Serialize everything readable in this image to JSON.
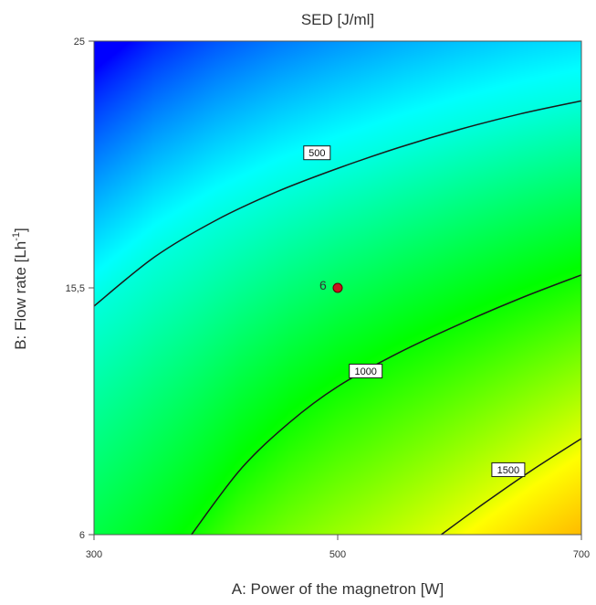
{
  "chart_data": {
    "type": "heatmap",
    "subtype": "contour",
    "title": "SED [J/ml]",
    "xlabel": "A: Power of the magnetron [W]",
    "ylabel_text": "B: Flow rate ",
    "ylabel_unit": "[Lh",
    "ylabel_exp": "-1",
    "ylabel_close": "]",
    "xlim": [
      300,
      700
    ],
    "ylim": [
      6,
      25
    ],
    "xticks": [
      300,
      500,
      700
    ],
    "xtick_labels": [
      "300",
      "500",
      "700"
    ],
    "yticks": [
      6,
      15.5,
      25
    ],
    "ytick_labels": [
      "6",
      "15,5",
      "25"
    ],
    "colormap": [
      "#0000ff",
      "#00ffff",
      "#00ff00",
      "#ffff00",
      "#ff8000"
    ],
    "value_range": [
      0,
      2200
    ],
    "contours": [
      {
        "level": 500,
        "label": "500",
        "label_at": [
          483,
          20.7
        ],
        "points": [
          [
            300,
            14.8
          ],
          [
            350,
            16.7
          ],
          [
            400,
            18.1
          ],
          [
            450,
            19.2
          ],
          [
            500,
            20.1
          ],
          [
            550,
            20.9
          ],
          [
            600,
            21.6
          ],
          [
            650,
            22.2
          ],
          [
            700,
            22.7
          ]
        ]
      },
      {
        "level": 1000,
        "label": "1000",
        "label_at": [
          523,
          12.3
        ],
        "points": [
          [
            380,
            6
          ],
          [
            420,
            8.5
          ],
          [
            460,
            10.3
          ],
          [
            500,
            11.7
          ],
          [
            550,
            13
          ],
          [
            600,
            14.1
          ],
          [
            650,
            15.1
          ],
          [
            700,
            16.0
          ]
        ]
      },
      {
        "level": 1500,
        "label": "1500",
        "label_at": [
          640,
          8.5
        ],
        "points": [
          [
            585,
            6
          ],
          [
            620,
            7.2
          ],
          [
            660,
            8.5
          ],
          [
            700,
            9.7
          ]
        ]
      }
    ],
    "points": [
      {
        "label": "6",
        "x": 500,
        "y": 15.5,
        "color": "#c8141e"
      }
    ]
  }
}
